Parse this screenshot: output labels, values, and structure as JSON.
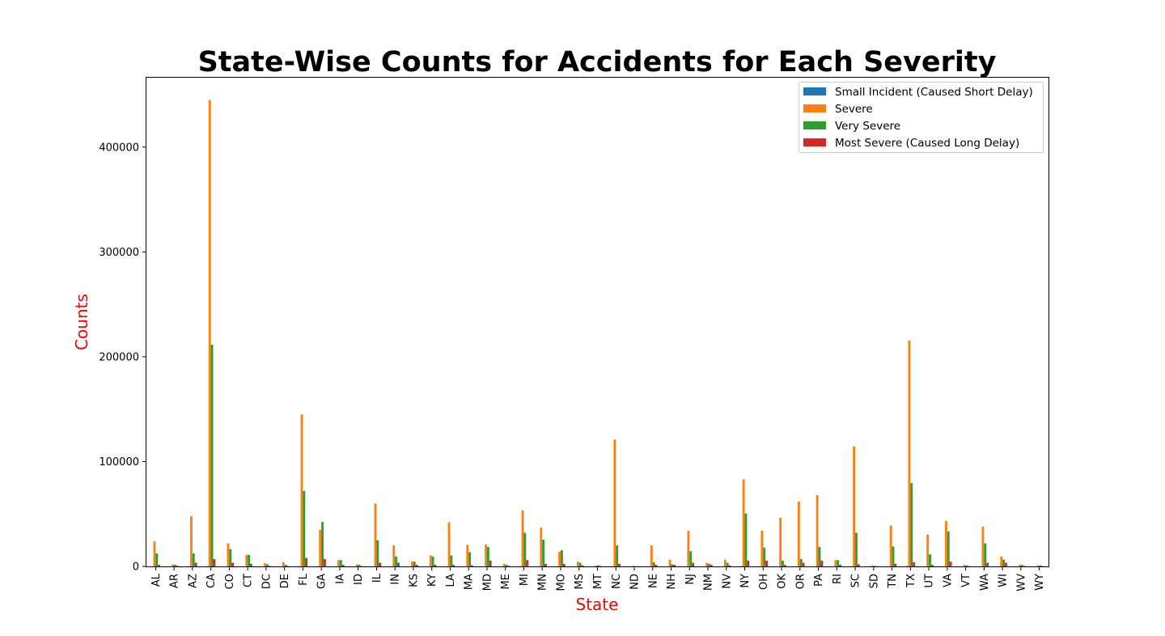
{
  "chart_data": {
    "type": "bar",
    "title": "State-Wise Counts for Accidents for Each Severity",
    "xlabel": "State",
    "ylabel": "Counts",
    "label_color": "#ff0000",
    "ylim": [
      0,
      467000
    ],
    "yticks": [
      0,
      100000,
      200000,
      300000,
      400000
    ],
    "grid": false,
    "legend_position": "top-right",
    "categories": [
      "AL",
      "AR",
      "AZ",
      "CA",
      "CO",
      "CT",
      "DC",
      "DE",
      "FL",
      "GA",
      "IA",
      "ID",
      "IL",
      "IN",
      "KS",
      "KY",
      "LA",
      "MA",
      "MD",
      "ME",
      "MI",
      "MN",
      "MO",
      "MS",
      "MT",
      "NC",
      "ND",
      "NE",
      "NH",
      "NJ",
      "NM",
      "NV",
      "NY",
      "OH",
      "OK",
      "OR",
      "PA",
      "RI",
      "SC",
      "SD",
      "TN",
      "TX",
      "UT",
      "VA",
      "VT",
      "WA",
      "WI",
      "WV",
      "WY"
    ],
    "series": [
      {
        "name": "Small Incident (Caused Short Delay)",
        "color": "#1f77b4",
        "values": [
          100,
          50,
          200,
          300,
          100,
          50,
          20,
          20,
          300,
          200,
          50,
          20,
          100,
          100,
          50,
          50,
          100,
          50,
          100,
          20,
          200,
          100,
          100,
          20,
          20,
          200,
          10,
          50,
          50,
          100,
          20,
          50,
          300,
          100,
          100,
          100,
          100,
          20,
          200,
          10,
          100,
          400,
          100,
          100,
          20,
          100,
          50,
          20,
          20
        ]
      },
      {
        "name": "Severe",
        "color": "#ff7f0e",
        "values": [
          24000,
          2000,
          48000,
          445000,
          22000,
          11000,
          3000,
          4000,
          145000,
          35000,
          6000,
          2000,
          60000,
          20000,
          4500,
          10500,
          42000,
          20500,
          21000,
          2500,
          53500,
          37000,
          14000,
          4500,
          1000,
          121000,
          500,
          20000,
          6500,
          34000,
          3500,
          6500,
          83000,
          34000,
          46500,
          62000,
          68000,
          6000,
          114500,
          1000,
          39000,
          215500,
          30500,
          43500,
          1500,
          38000,
          9500,
          1500,
          1000
        ]
      },
      {
        "name": "Very Severe",
        "color": "#2ca02c",
        "values": [
          12500,
          1500,
          12500,
          211500,
          16500,
          11000,
          2000,
          1500,
          72000,
          42500,
          6000,
          1500,
          25000,
          9500,
          4500,
          9500,
          10500,
          13500,
          18500,
          1500,
          32000,
          25500,
          15500,
          3500,
          1000,
          20000,
          300,
          4000,
          2000,
          14500,
          2500,
          3500,
          50500,
          18000,
          5500,
          7000,
          18500,
          6000,
          32000,
          500,
          19000,
          79500,
          11500,
          33500,
          1000,
          22000,
          6500,
          1500,
          1000
        ]
      },
      {
        "name": "Most Severe (Caused Long Delay)",
        "color": "#d62728",
        "values": [
          1500,
          500,
          3500,
          7000,
          3500,
          2500,
          500,
          500,
          8000,
          7000,
          1500,
          300,
          3500,
          3500,
          1500,
          1500,
          1500,
          1000,
          5500,
          500,
          6000,
          2500,
          2500,
          1000,
          300,
          2500,
          100,
          1500,
          1500,
          3500,
          1500,
          1000,
          5500,
          5500,
          1500,
          3500,
          5500,
          1500,
          2000,
          200,
          2500,
          4000,
          1500,
          4500,
          300,
          3500,
          3500,
          500,
          300
        ]
      }
    ]
  }
}
